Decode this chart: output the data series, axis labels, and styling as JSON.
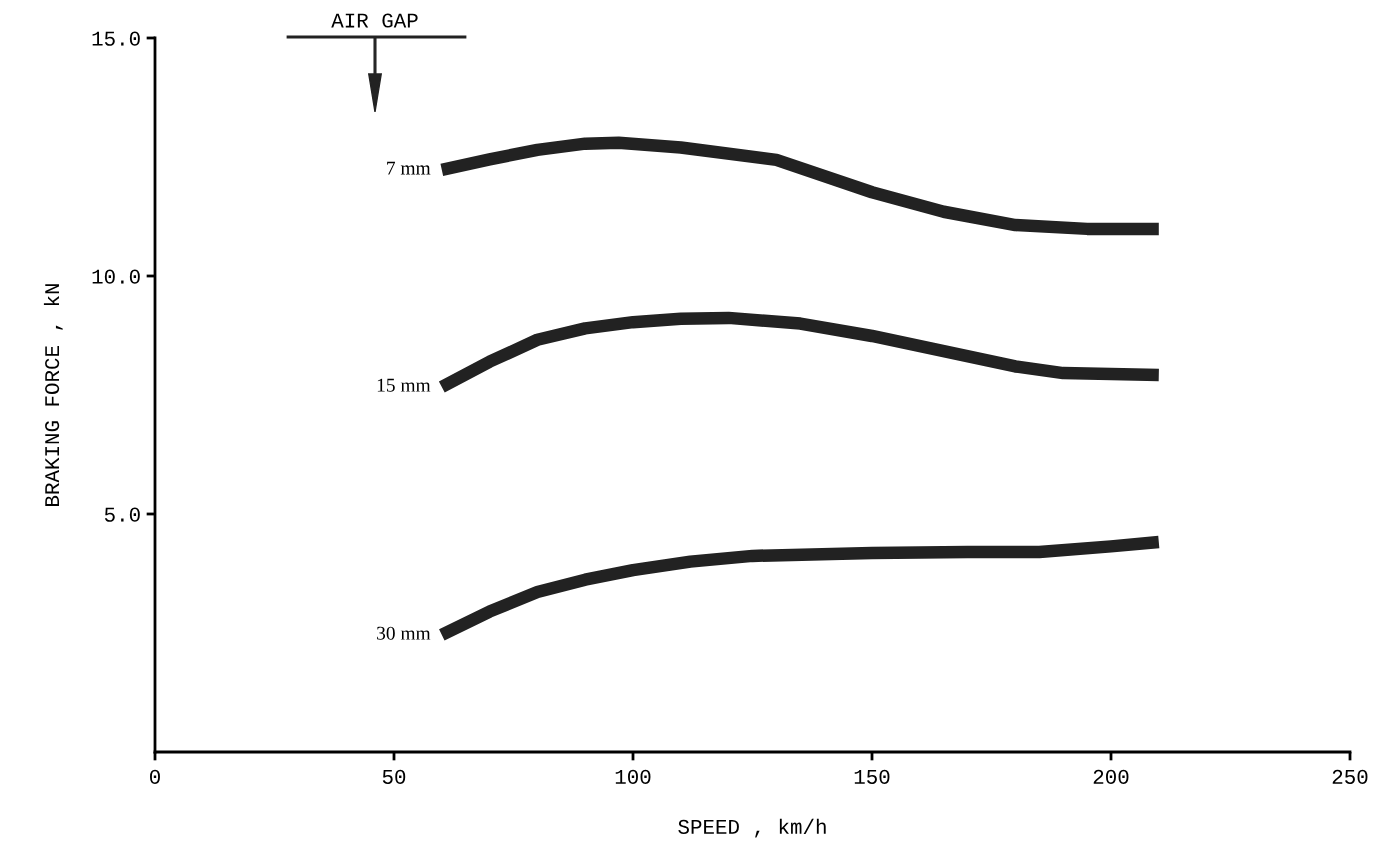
{
  "chart_data": {
    "type": "line",
    "xlabel": "SPEED , km/h",
    "ylabel": "BRAKING FORCE , kN",
    "annotations": [
      "AIR GAP"
    ],
    "xlim": [
      0,
      250
    ],
    "xticks": [
      0,
      50,
      100,
      150,
      200,
      250
    ],
    "ylim": [
      0,
      15
    ],
    "yticks": [
      {
        "value": 5,
        "label": "5.0"
      },
      {
        "value": 10,
        "label": "10.0"
      },
      {
        "value": 15,
        "label": "15.0"
      }
    ],
    "grid": false,
    "legend": false,
    "marker": "none",
    "line_style": "solid",
    "series": [
      {
        "name": "7 mm",
        "color": "#222222",
        "x": [
          60,
          70,
          80,
          90,
          97,
          110,
          130,
          150,
          165,
          180,
          195,
          210
        ],
        "values": [
          12.23,
          12.45,
          12.65,
          12.78,
          12.8,
          12.7,
          12.44,
          11.76,
          11.35,
          11.07,
          10.99,
          10.99
        ]
      },
      {
        "name": "15 mm",
        "color": "#222222",
        "x": [
          60,
          70,
          80,
          90,
          100,
          110,
          120,
          135,
          150,
          165,
          180,
          190,
          210
        ],
        "values": [
          7.67,
          8.2,
          8.66,
          8.9,
          9.03,
          9.1,
          9.12,
          9.0,
          8.74,
          8.42,
          8.1,
          7.96,
          7.92
        ]
      },
      {
        "name": "30 mm",
        "color": "#222222",
        "x": [
          60,
          70,
          80,
          90,
          100,
          112,
          125,
          150,
          170,
          185,
          200,
          210
        ],
        "values": [
          2.46,
          2.95,
          3.36,
          3.62,
          3.82,
          4.0,
          4.12,
          4.18,
          4.2,
          4.2,
          4.32,
          4.41
        ]
      }
    ]
  }
}
